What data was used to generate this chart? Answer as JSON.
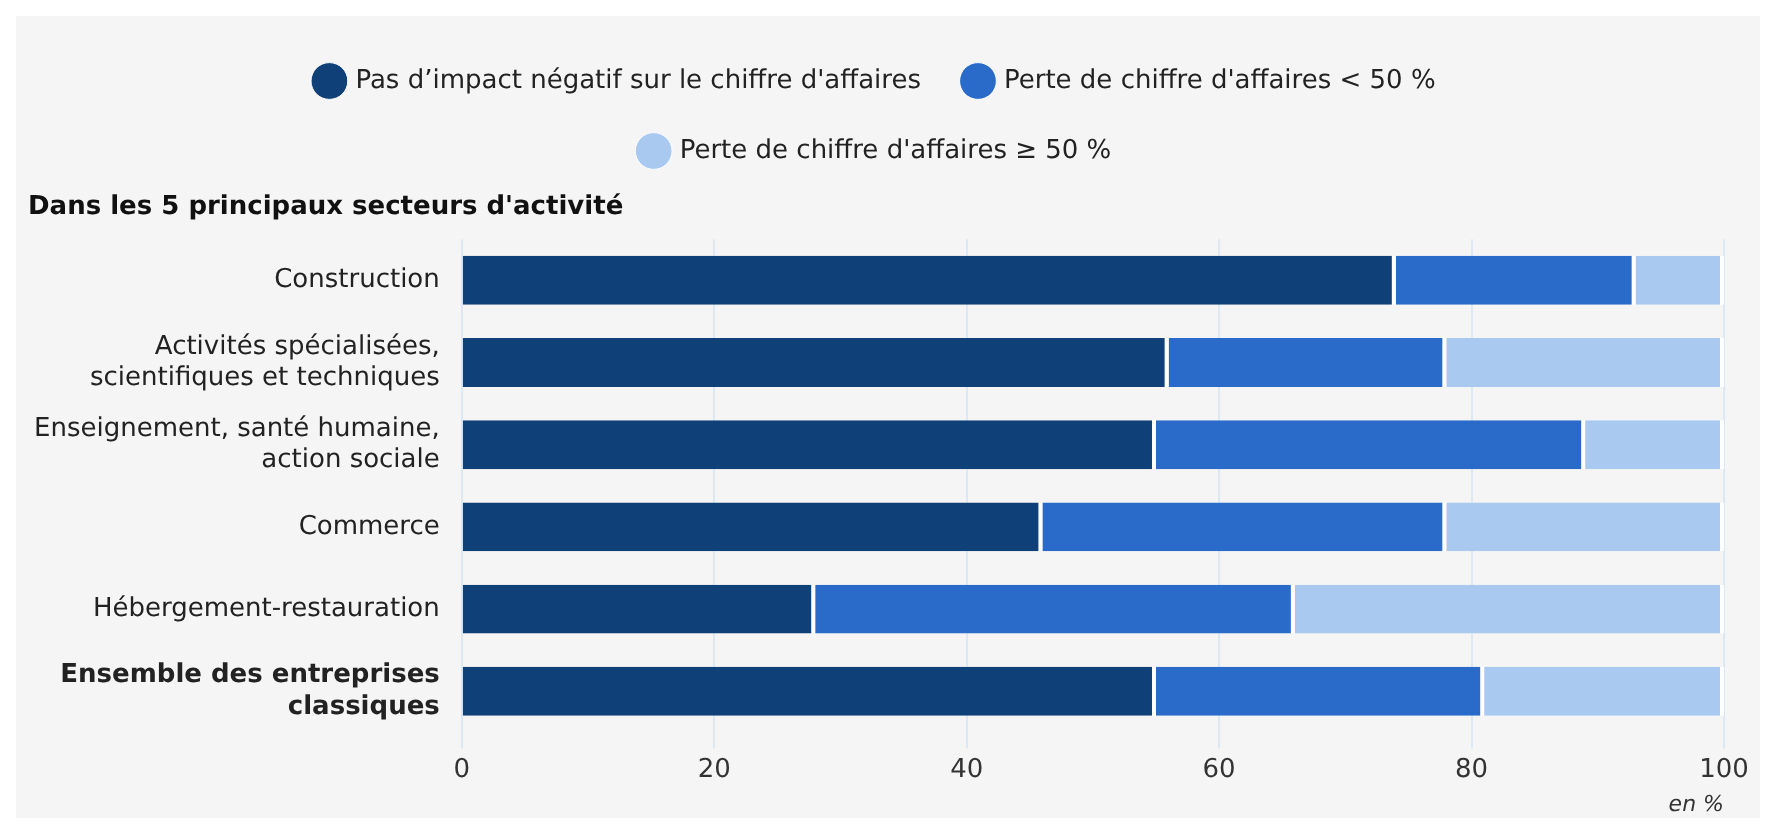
{
  "chart_data": {
    "type": "bar",
    "orientation": "horizontal",
    "stacked": true,
    "subtitle": "Dans les 5 principaux secteurs d'activité",
    "xlabel": "en %",
    "categories": [
      "Construction",
      "Activités spécialisées, scientifiques et techniques",
      "Enseignement, santé humaine, action sociale",
      "Commerce",
      "Hébergement-restauration",
      "Ensemble des entreprises classiques"
    ],
    "series": [
      {
        "name": "Pas d’impact négatif sur le chiffre d'affaires",
        "color": "#0f4178",
        "values": [
          74,
          56,
          55,
          46,
          28,
          55
        ]
      },
      {
        "name": "Perte de chiffre d'affaires < 50 %",
        "color": "#2a6bca",
        "values": [
          19,
          22,
          34,
          32,
          38,
          26
        ]
      },
      {
        "name": "Perte de chiffre d'affaires ≥ 50 %",
        "color": "#a9c9f0",
        "values": [
          7,
          22,
          11,
          22,
          34,
          19
        ]
      }
    ],
    "xlim": [
      0,
      100
    ],
    "xticks": [
      0,
      20,
      40,
      60,
      80,
      100
    ],
    "grid": "x",
    "legend": "top"
  }
}
